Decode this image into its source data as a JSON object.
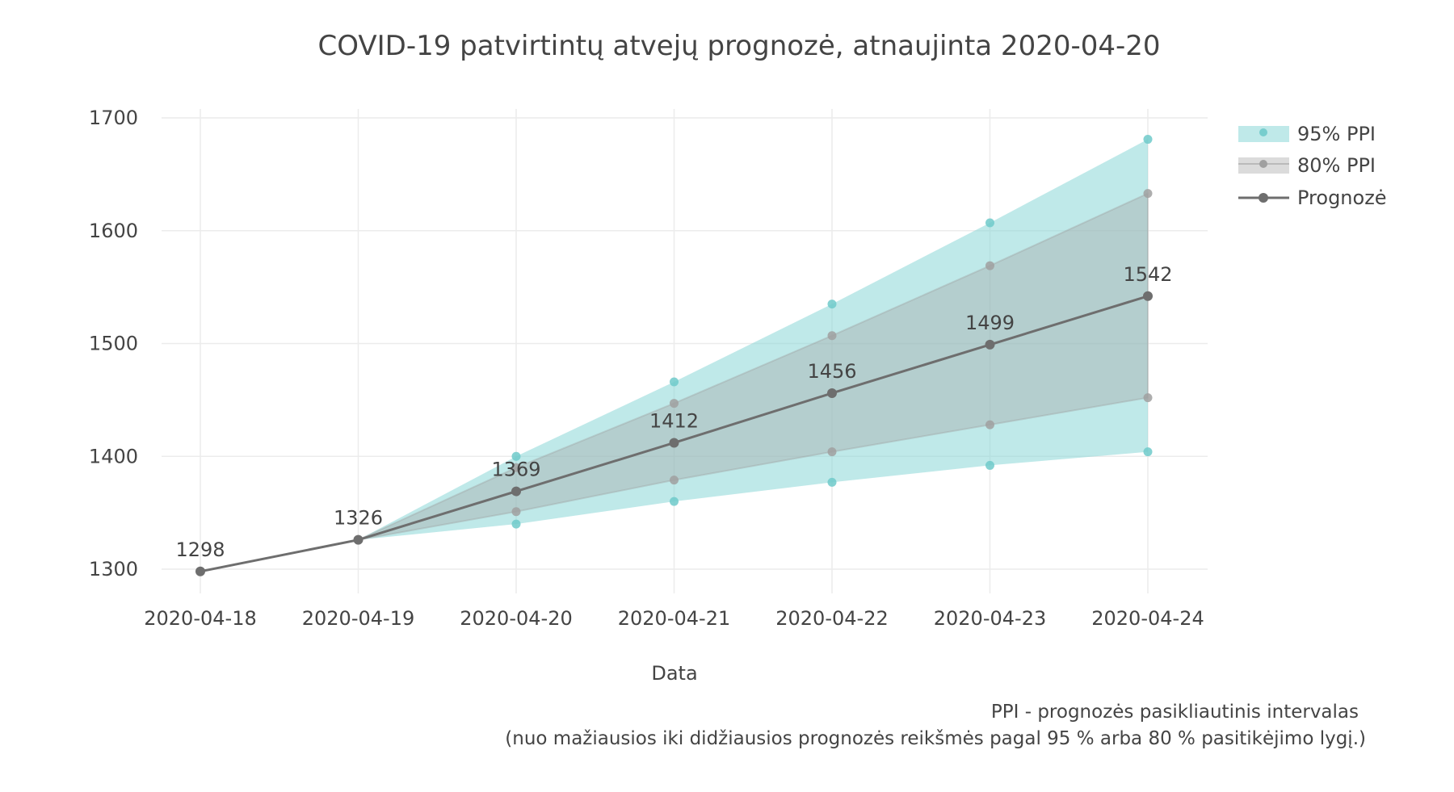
{
  "chart_data": {
    "type": "line",
    "title": "COVID-19 patvirtintų atvejų prognozė, atnaujinta 2020-04-20",
    "xlabel": "Data",
    "ylabel": "",
    "x": [
      "2020-04-18",
      "2020-04-19",
      "2020-04-20",
      "2020-04-21",
      "2020-04-22",
      "2020-04-23",
      "2020-04-24"
    ],
    "y_ticks": [
      1300,
      1400,
      1500,
      1600,
      1700
    ],
    "ylim": [
      1275,
      1705
    ],
    "grid": true,
    "legend_position": "top-right",
    "series": [
      {
        "name": "95% PPI",
        "type": "band",
        "color": "#7fd3d3",
        "lower": [
          1298,
          1326,
          1340,
          1360,
          1377,
          1392,
          1404
        ],
        "upper": [
          1298,
          1326,
          1400,
          1466,
          1535,
          1607,
          1681
        ]
      },
      {
        "name": "80% PPI",
        "type": "band",
        "color": "#a6a6a6",
        "lower": [
          1298,
          1326,
          1351,
          1379,
          1404,
          1428,
          1452
        ],
        "upper": [
          1298,
          1326,
          1390,
          1447,
          1507,
          1569,
          1633
        ]
      },
      {
        "name": "Prognozė",
        "type": "line",
        "color": "#6e6e6e",
        "values": [
          1298,
          1326,
          1369,
          1412,
          1456,
          1499,
          1542
        ],
        "labels": [
          "1298",
          "1326",
          "1369",
          "1412",
          "1456",
          "1499",
          "1542"
        ]
      }
    ],
    "annotations": [
      "PPI - prognozės pasikliautinis intervalas",
      "(nuo mažiausios iki didžiausios prognozės reikšmės pagal 95 % arba 80 % pasitikėjimo lygį.)"
    ]
  }
}
